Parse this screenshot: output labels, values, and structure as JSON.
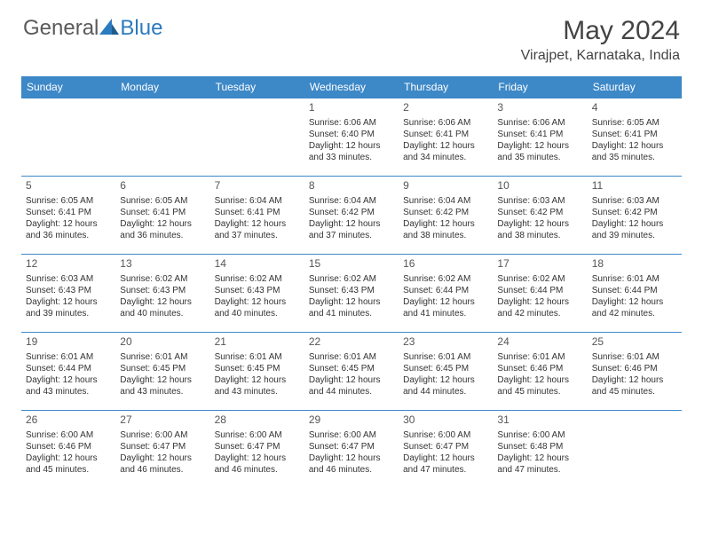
{
  "logo": {
    "text1": "General",
    "text2": "Blue"
  },
  "title": "May 2024",
  "location": "Virajpet, Karnataka, India",
  "colors": {
    "header_bg": "#3d88c7",
    "header_text": "#ffffff",
    "border": "#3d88c7",
    "logo_gray": "#5a5a5a",
    "logo_blue": "#2b7bbf",
    "body_text": "#333333"
  },
  "weekday_headers": [
    "Sunday",
    "Monday",
    "Tuesday",
    "Wednesday",
    "Thursday",
    "Friday",
    "Saturday"
  ],
  "weeks": [
    [
      null,
      null,
      null,
      {
        "day": "1",
        "sunrise": "Sunrise: 6:06 AM",
        "sunset": "Sunset: 6:40 PM",
        "dl1": "Daylight: 12 hours",
        "dl2": "and 33 minutes."
      },
      {
        "day": "2",
        "sunrise": "Sunrise: 6:06 AM",
        "sunset": "Sunset: 6:41 PM",
        "dl1": "Daylight: 12 hours",
        "dl2": "and 34 minutes."
      },
      {
        "day": "3",
        "sunrise": "Sunrise: 6:06 AM",
        "sunset": "Sunset: 6:41 PM",
        "dl1": "Daylight: 12 hours",
        "dl2": "and 35 minutes."
      },
      {
        "day": "4",
        "sunrise": "Sunrise: 6:05 AM",
        "sunset": "Sunset: 6:41 PM",
        "dl1": "Daylight: 12 hours",
        "dl2": "and 35 minutes."
      }
    ],
    [
      {
        "day": "5",
        "sunrise": "Sunrise: 6:05 AM",
        "sunset": "Sunset: 6:41 PM",
        "dl1": "Daylight: 12 hours",
        "dl2": "and 36 minutes."
      },
      {
        "day": "6",
        "sunrise": "Sunrise: 6:05 AM",
        "sunset": "Sunset: 6:41 PM",
        "dl1": "Daylight: 12 hours",
        "dl2": "and 36 minutes."
      },
      {
        "day": "7",
        "sunrise": "Sunrise: 6:04 AM",
        "sunset": "Sunset: 6:41 PM",
        "dl1": "Daylight: 12 hours",
        "dl2": "and 37 minutes."
      },
      {
        "day": "8",
        "sunrise": "Sunrise: 6:04 AM",
        "sunset": "Sunset: 6:42 PM",
        "dl1": "Daylight: 12 hours",
        "dl2": "and 37 minutes."
      },
      {
        "day": "9",
        "sunrise": "Sunrise: 6:04 AM",
        "sunset": "Sunset: 6:42 PM",
        "dl1": "Daylight: 12 hours",
        "dl2": "and 38 minutes."
      },
      {
        "day": "10",
        "sunrise": "Sunrise: 6:03 AM",
        "sunset": "Sunset: 6:42 PM",
        "dl1": "Daylight: 12 hours",
        "dl2": "and 38 minutes."
      },
      {
        "day": "11",
        "sunrise": "Sunrise: 6:03 AM",
        "sunset": "Sunset: 6:42 PM",
        "dl1": "Daylight: 12 hours",
        "dl2": "and 39 minutes."
      }
    ],
    [
      {
        "day": "12",
        "sunrise": "Sunrise: 6:03 AM",
        "sunset": "Sunset: 6:43 PM",
        "dl1": "Daylight: 12 hours",
        "dl2": "and 39 minutes."
      },
      {
        "day": "13",
        "sunrise": "Sunrise: 6:02 AM",
        "sunset": "Sunset: 6:43 PM",
        "dl1": "Daylight: 12 hours",
        "dl2": "and 40 minutes."
      },
      {
        "day": "14",
        "sunrise": "Sunrise: 6:02 AM",
        "sunset": "Sunset: 6:43 PM",
        "dl1": "Daylight: 12 hours",
        "dl2": "and 40 minutes."
      },
      {
        "day": "15",
        "sunrise": "Sunrise: 6:02 AM",
        "sunset": "Sunset: 6:43 PM",
        "dl1": "Daylight: 12 hours",
        "dl2": "and 41 minutes."
      },
      {
        "day": "16",
        "sunrise": "Sunrise: 6:02 AM",
        "sunset": "Sunset: 6:44 PM",
        "dl1": "Daylight: 12 hours",
        "dl2": "and 41 minutes."
      },
      {
        "day": "17",
        "sunrise": "Sunrise: 6:02 AM",
        "sunset": "Sunset: 6:44 PM",
        "dl1": "Daylight: 12 hours",
        "dl2": "and 42 minutes."
      },
      {
        "day": "18",
        "sunrise": "Sunrise: 6:01 AM",
        "sunset": "Sunset: 6:44 PM",
        "dl1": "Daylight: 12 hours",
        "dl2": "and 42 minutes."
      }
    ],
    [
      {
        "day": "19",
        "sunrise": "Sunrise: 6:01 AM",
        "sunset": "Sunset: 6:44 PM",
        "dl1": "Daylight: 12 hours",
        "dl2": "and 43 minutes."
      },
      {
        "day": "20",
        "sunrise": "Sunrise: 6:01 AM",
        "sunset": "Sunset: 6:45 PM",
        "dl1": "Daylight: 12 hours",
        "dl2": "and 43 minutes."
      },
      {
        "day": "21",
        "sunrise": "Sunrise: 6:01 AM",
        "sunset": "Sunset: 6:45 PM",
        "dl1": "Daylight: 12 hours",
        "dl2": "and 43 minutes."
      },
      {
        "day": "22",
        "sunrise": "Sunrise: 6:01 AM",
        "sunset": "Sunset: 6:45 PM",
        "dl1": "Daylight: 12 hours",
        "dl2": "and 44 minutes."
      },
      {
        "day": "23",
        "sunrise": "Sunrise: 6:01 AM",
        "sunset": "Sunset: 6:45 PM",
        "dl1": "Daylight: 12 hours",
        "dl2": "and 44 minutes."
      },
      {
        "day": "24",
        "sunrise": "Sunrise: 6:01 AM",
        "sunset": "Sunset: 6:46 PM",
        "dl1": "Daylight: 12 hours",
        "dl2": "and 45 minutes."
      },
      {
        "day": "25",
        "sunrise": "Sunrise: 6:01 AM",
        "sunset": "Sunset: 6:46 PM",
        "dl1": "Daylight: 12 hours",
        "dl2": "and 45 minutes."
      }
    ],
    [
      {
        "day": "26",
        "sunrise": "Sunrise: 6:00 AM",
        "sunset": "Sunset: 6:46 PM",
        "dl1": "Daylight: 12 hours",
        "dl2": "and 45 minutes."
      },
      {
        "day": "27",
        "sunrise": "Sunrise: 6:00 AM",
        "sunset": "Sunset: 6:47 PM",
        "dl1": "Daylight: 12 hours",
        "dl2": "and 46 minutes."
      },
      {
        "day": "28",
        "sunrise": "Sunrise: 6:00 AM",
        "sunset": "Sunset: 6:47 PM",
        "dl1": "Daylight: 12 hours",
        "dl2": "and 46 minutes."
      },
      {
        "day": "29",
        "sunrise": "Sunrise: 6:00 AM",
        "sunset": "Sunset: 6:47 PM",
        "dl1": "Daylight: 12 hours",
        "dl2": "and 46 minutes."
      },
      {
        "day": "30",
        "sunrise": "Sunrise: 6:00 AM",
        "sunset": "Sunset: 6:47 PM",
        "dl1": "Daylight: 12 hours",
        "dl2": "and 47 minutes."
      },
      {
        "day": "31",
        "sunrise": "Sunrise: 6:00 AM",
        "sunset": "Sunset: 6:48 PM",
        "dl1": "Daylight: 12 hours",
        "dl2": "and 47 minutes."
      },
      null
    ]
  ]
}
